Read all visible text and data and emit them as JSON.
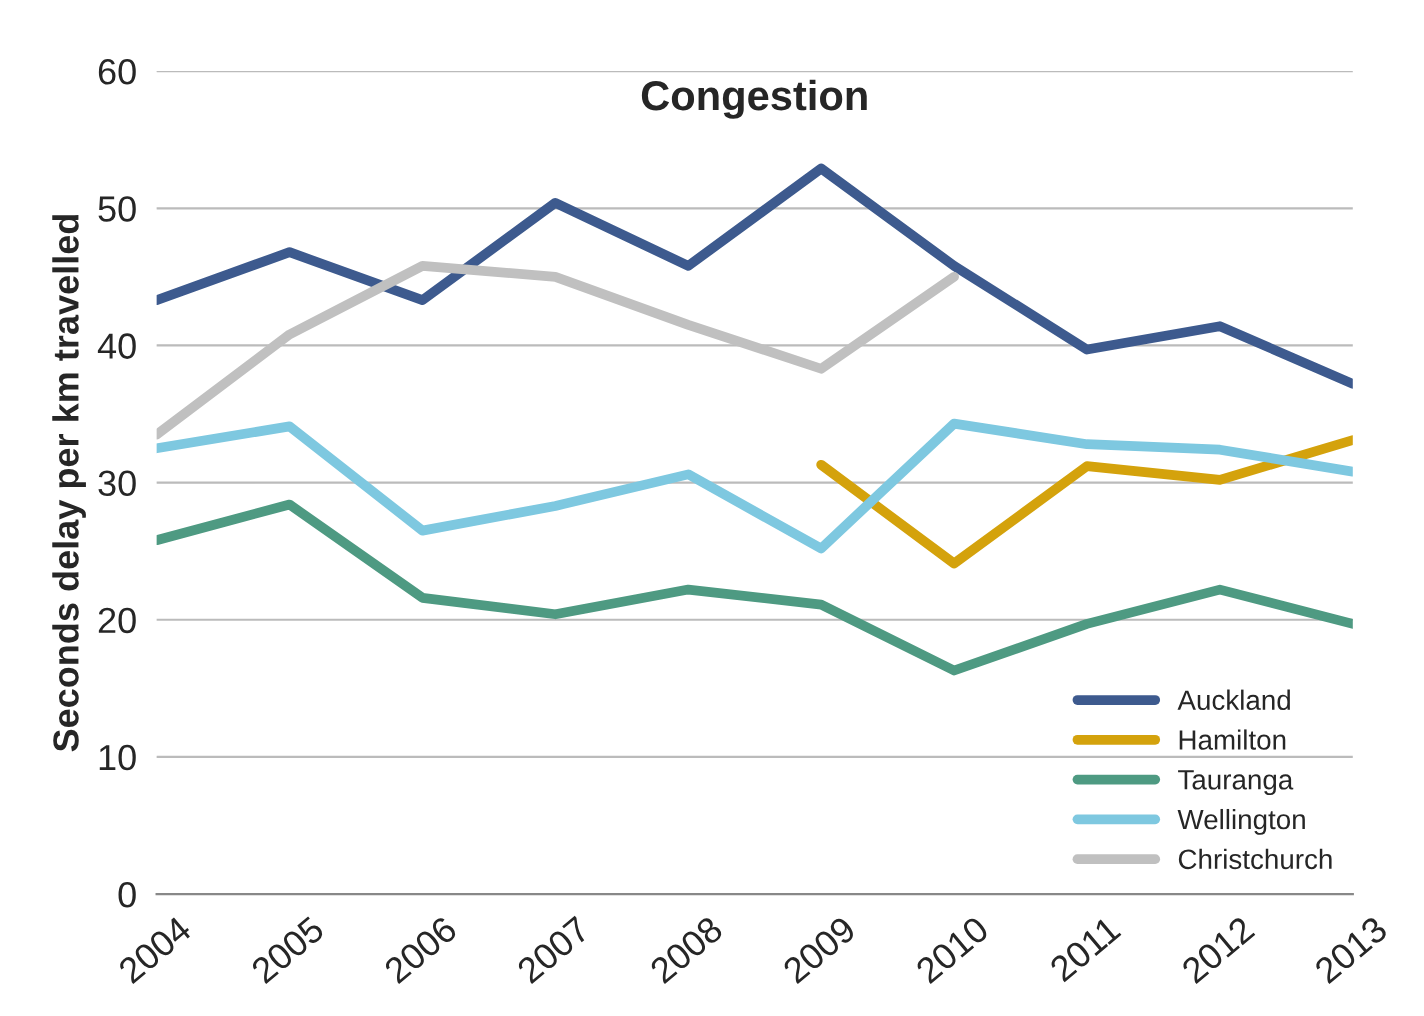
{
  "chart_data": {
    "type": "line",
    "title": "Congestion",
    "ylabel": "Seconds delay per km travelled",
    "categories": [
      "2004",
      "2005",
      "2006",
      "2007",
      "2008",
      "2009",
      "2010",
      "2011",
      "2012",
      "2013"
    ],
    "series": [
      {
        "name": "Auckland",
        "color": "#3d5a8e",
        "values": [
          43.3,
          46.8,
          43.3,
          50.4,
          45.8,
          52.9,
          45.8,
          39.7,
          41.4,
          37.2
        ]
      },
      {
        "name": "Hamilton",
        "color": "#d4a20c",
        "values": [
          null,
          null,
          null,
          null,
          null,
          31.3,
          24.1,
          31.2,
          30.2,
          33.1
        ]
      },
      {
        "name": "Tauranga",
        "color": "#4e9a82",
        "values": [
          25.8,
          28.4,
          21.6,
          20.4,
          22.2,
          21.1,
          16.3,
          19.7,
          22.2,
          19.7
        ]
      },
      {
        "name": "Wellington",
        "color": "#7ec8e0",
        "values": [
          32.5,
          34.1,
          26.5,
          28.3,
          30.6,
          25.2,
          34.3,
          32.8,
          32.4,
          30.8
        ]
      },
      {
        "name": "Christchurch",
        "color": "#c0c0c0",
        "values": [
          33.5,
          40.8,
          45.8,
          45.0,
          41.5,
          38.3,
          45.0,
          null,
          null,
          null
        ]
      }
    ],
    "ylim": [
      0,
      60
    ],
    "yticks": [
      0,
      10,
      20,
      30,
      40,
      50,
      60
    ],
    "grid": "y",
    "legend": "bottom right",
    "marker": "none",
    "line_style": "solid"
  }
}
